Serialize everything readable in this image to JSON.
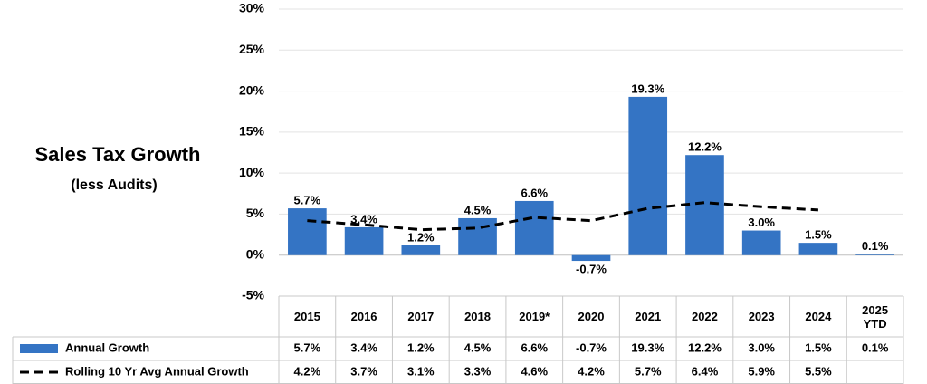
{
  "chart_data": {
    "type": "bar",
    "title": "Sales Tax Growth",
    "subtitle": "(less Audits)",
    "categories": [
      "2015",
      "2016",
      "2017",
      "2018",
      "2019*",
      "2020",
      "2021",
      "2022",
      "2023",
      "2024",
      "2025 YTD"
    ],
    "series": [
      {
        "name": "Annual Growth",
        "type": "bar",
        "color": "#3474c4",
        "values": [
          5.7,
          3.4,
          1.2,
          4.5,
          6.6,
          -0.7,
          19.3,
          12.2,
          3.0,
          1.5,
          0.1
        ],
        "value_labels": [
          "5.7%",
          "3.4%",
          "1.2%",
          "4.5%",
          "6.6%",
          "-0.7%",
          "19.3%",
          "12.2%",
          "3.0%",
          "1.5%",
          "0.1%"
        ]
      },
      {
        "name": "Rolling 10 Yr Avg Annual Growth",
        "type": "line",
        "color": "#000000",
        "values": [
          4.2,
          3.7,
          3.1,
          3.3,
          4.6,
          4.2,
          5.7,
          6.4,
          5.9,
          5.5,
          null
        ],
        "value_labels": [
          "4.2%",
          "3.7%",
          "3.1%",
          "3.3%",
          "4.6%",
          "4.2%",
          "5.7%",
          "6.4%",
          "5.9%",
          "5.5%",
          null
        ]
      }
    ],
    "ylim": [
      -5,
      30
    ],
    "yticks": [
      {
        "value": -5,
        "label": "-5%"
      },
      {
        "value": 0,
        "label": "0%"
      },
      {
        "value": 5,
        "label": "5%"
      },
      {
        "value": 10,
        "label": "10%"
      },
      {
        "value": 15,
        "label": "15%"
      },
      {
        "value": 20,
        "label": "20%"
      },
      {
        "value": 25,
        "label": "25%"
      },
      {
        "value": 30,
        "label": "30%"
      }
    ],
    "grid": true
  }
}
